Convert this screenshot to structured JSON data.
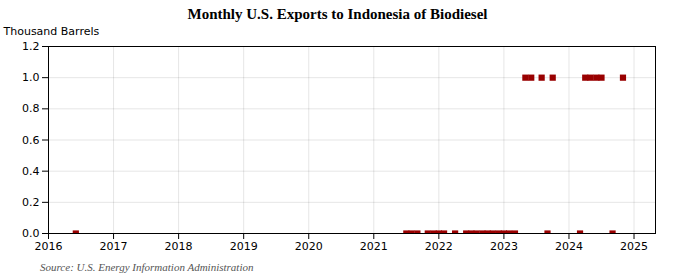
{
  "chart_data": {
    "type": "scatter",
    "title": "Monthly U.S. Exports to Indonesia of Biodiesel",
    "ylabel": "Thousand Barrels",
    "annotations": [
      "Source: U.S. Energy Information Administration"
    ],
    "x": [
      2016.42,
      2021.5,
      2021.58,
      2021.67,
      2021.83,
      2021.92,
      2022.0,
      2022.08,
      2022.25,
      2022.42,
      2022.5,
      2022.58,
      2022.67,
      2022.75,
      2022.83,
      2022.92,
      2023.0,
      2023.08,
      2023.17,
      2023.33,
      2023.42,
      2023.58,
      2023.67,
      2023.75,
      2024.17,
      2024.25,
      2024.33,
      2024.42,
      2024.5,
      2024.67,
      2024.83
    ],
    "values": [
      0.0,
      0.0,
      0.0,
      0.0,
      0.0,
      0.0,
      0.0,
      0.0,
      0.0,
      0.0,
      0.0,
      0.0,
      0.0,
      0.0,
      0.0,
      0.0,
      0.0,
      0.0,
      0.0,
      1.0,
      1.0,
      1.0,
      0.0,
      1.0,
      0.0,
      1.0,
      1.0,
      1.0,
      1.0,
      0.0,
      1.0
    ],
    "color": "#990000",
    "marker": "square",
    "xlim": [
      2016.0,
      2025.33
    ],
    "ylim": [
      0.0,
      1.2
    ],
    "xticks": [
      2016,
      2017,
      2018,
      2019,
      2020,
      2021,
      2022,
      2023,
      2024,
      2025
    ],
    "yticks": [
      {
        "value": 0.0,
        "label": "0.0"
      },
      0.2,
      0.4,
      0.6,
      0.8,
      {
        "value": 1.0,
        "label": "1.0"
      },
      1.2
    ],
    "grid": true
  }
}
